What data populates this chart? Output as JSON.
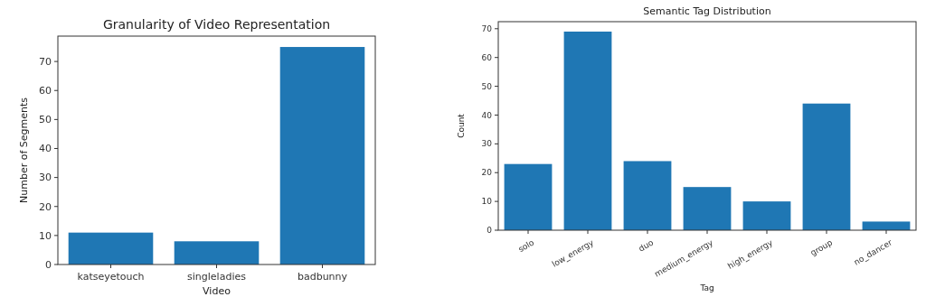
{
  "chart_data": [
    {
      "type": "bar",
      "title": "Granularity of Video Representation",
      "xlabel": "Video",
      "ylabel": "Number of Segments",
      "categories": [
        "katseyetouch",
        "singleladies",
        "badbunny"
      ],
      "values": [
        11,
        8,
        75
      ],
      "color": "#1f77b4",
      "ylim": [
        0,
        78.75
      ],
      "yticks": [
        0,
        10,
        20,
        30,
        40,
        50,
        60,
        70
      ]
    },
    {
      "type": "bar",
      "title": "Semantic Tag Distribution",
      "xlabel": "Tag",
      "ylabel": "Count",
      "categories": [
        "solo",
        "low_energy",
        "duo",
        "medium_energy",
        "high_energy",
        "group",
        "no_dancer"
      ],
      "values": [
        23,
        69,
        24,
        15,
        10,
        44,
        3
      ],
      "color": "#1f77b4",
      "ylim": [
        0,
        72.45
      ],
      "yticks": [
        0,
        10,
        20,
        30,
        40,
        50,
        60,
        70
      ]
    }
  ]
}
